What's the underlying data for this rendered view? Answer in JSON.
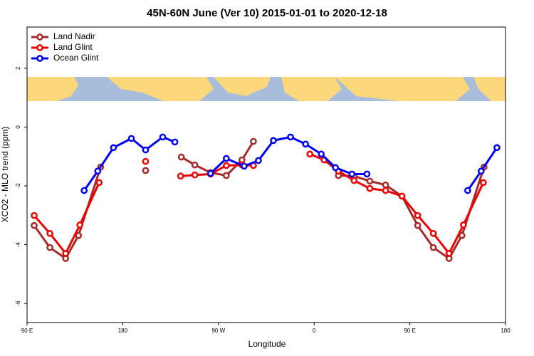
{
  "chart_data": {
    "type": "line",
    "title": "45N-60N June (Ver 10)   2015-01-01 to 2020-12-18",
    "x_label": "Longitude",
    "y_label": "XCO2 - MLO trend (ppm)",
    "xlim": [
      90,
      540
    ],
    "xticks": [
      {
        "value": 90,
        "label": "90 E"
      },
      {
        "value": 180,
        "label": "180"
      },
      {
        "value": 270,
        "label": "90 W"
      },
      {
        "value": 360,
        "label": "0"
      },
      {
        "value": 450,
        "label": "90 E"
      },
      {
        "value": 540,
        "label": "180"
      }
    ],
    "ylim": [
      -6.65,
      3.4
    ],
    "yticks": [
      -6,
      -4,
      -2,
      0,
      2
    ],
    "legend": "top-left",
    "series": [
      {
        "name": "Land Nadir",
        "color": "#a52a2a",
        "x": [
          96.7,
          111.5,
          126.3,
          138.4,
          159.2,
          null,
          201.5,
          null,
          235.1,
          247.8,
          262.6,
          277.4,
          292.1,
          302.9,
          null,
          382.8,
          397.6,
          412.4,
          427.2,
          442.6,
          457.4,
          472.1,
          486.9,
          499.0,
          519.8
        ],
        "values": [
          -3.35,
          -4.1,
          -4.47,
          -3.69,
          -1.36,
          null,
          -1.48,
          null,
          -1.02,
          -1.29,
          -1.55,
          -1.65,
          -1.12,
          -0.49,
          null,
          -1.65,
          -1.67,
          -1.84,
          -1.97,
          -2.35,
          -3.35,
          -4.1,
          -4.47,
          -3.69,
          -1.36
        ]
      },
      {
        "name": "Land Glint",
        "color": "#ee0000",
        "x": [
          96.7,
          111.5,
          126.3,
          139.7,
          157.8,
          null,
          201.5,
          null,
          234.4,
          247.8,
          262.6,
          277.4,
          292.1,
          302.9,
          null,
          356.0,
          369.4,
          382.8,
          397.6,
          412.4,
          427.2,
          442.6,
          457.4,
          472.1,
          486.9,
          500.4,
          519.1
        ],
        "values": [
          -3.01,
          -3.62,
          -4.3,
          -3.33,
          -1.89,
          null,
          -1.17,
          null,
          -1.67,
          -1.63,
          -1.6,
          -1.31,
          -1.29,
          -1.31,
          null,
          -0.92,
          -1.12,
          -1.5,
          -1.82,
          -2.09,
          -2.16,
          -2.35,
          -3.01,
          -3.62,
          -4.3,
          -3.33,
          -1.89
        ]
      },
      {
        "name": "Ocean Glint",
        "color": "#0000ee",
        "x": [
          143.7,
          156.5,
          171.3,
          188.1,
          201.5,
          217.6,
          229.0,
          null,
          262.6,
          277.4,
          294.2,
          307.6,
          321.7,
          337.8,
          351.9,
          366.7,
          380.1,
          395.6,
          409.7,
          null,
          504.4,
          517.1,
          531.9
        ],
        "values": [
          -2.16,
          -1.5,
          -0.7,
          -0.39,
          -0.78,
          -0.34,
          -0.51,
          null,
          -1.58,
          -1.07,
          -1.33,
          -1.14,
          -0.46,
          -0.34,
          -0.58,
          -0.92,
          -1.38,
          -1.6,
          -1.6,
          null,
          -2.16,
          -1.5,
          -0.7
        ]
      }
    ]
  }
}
